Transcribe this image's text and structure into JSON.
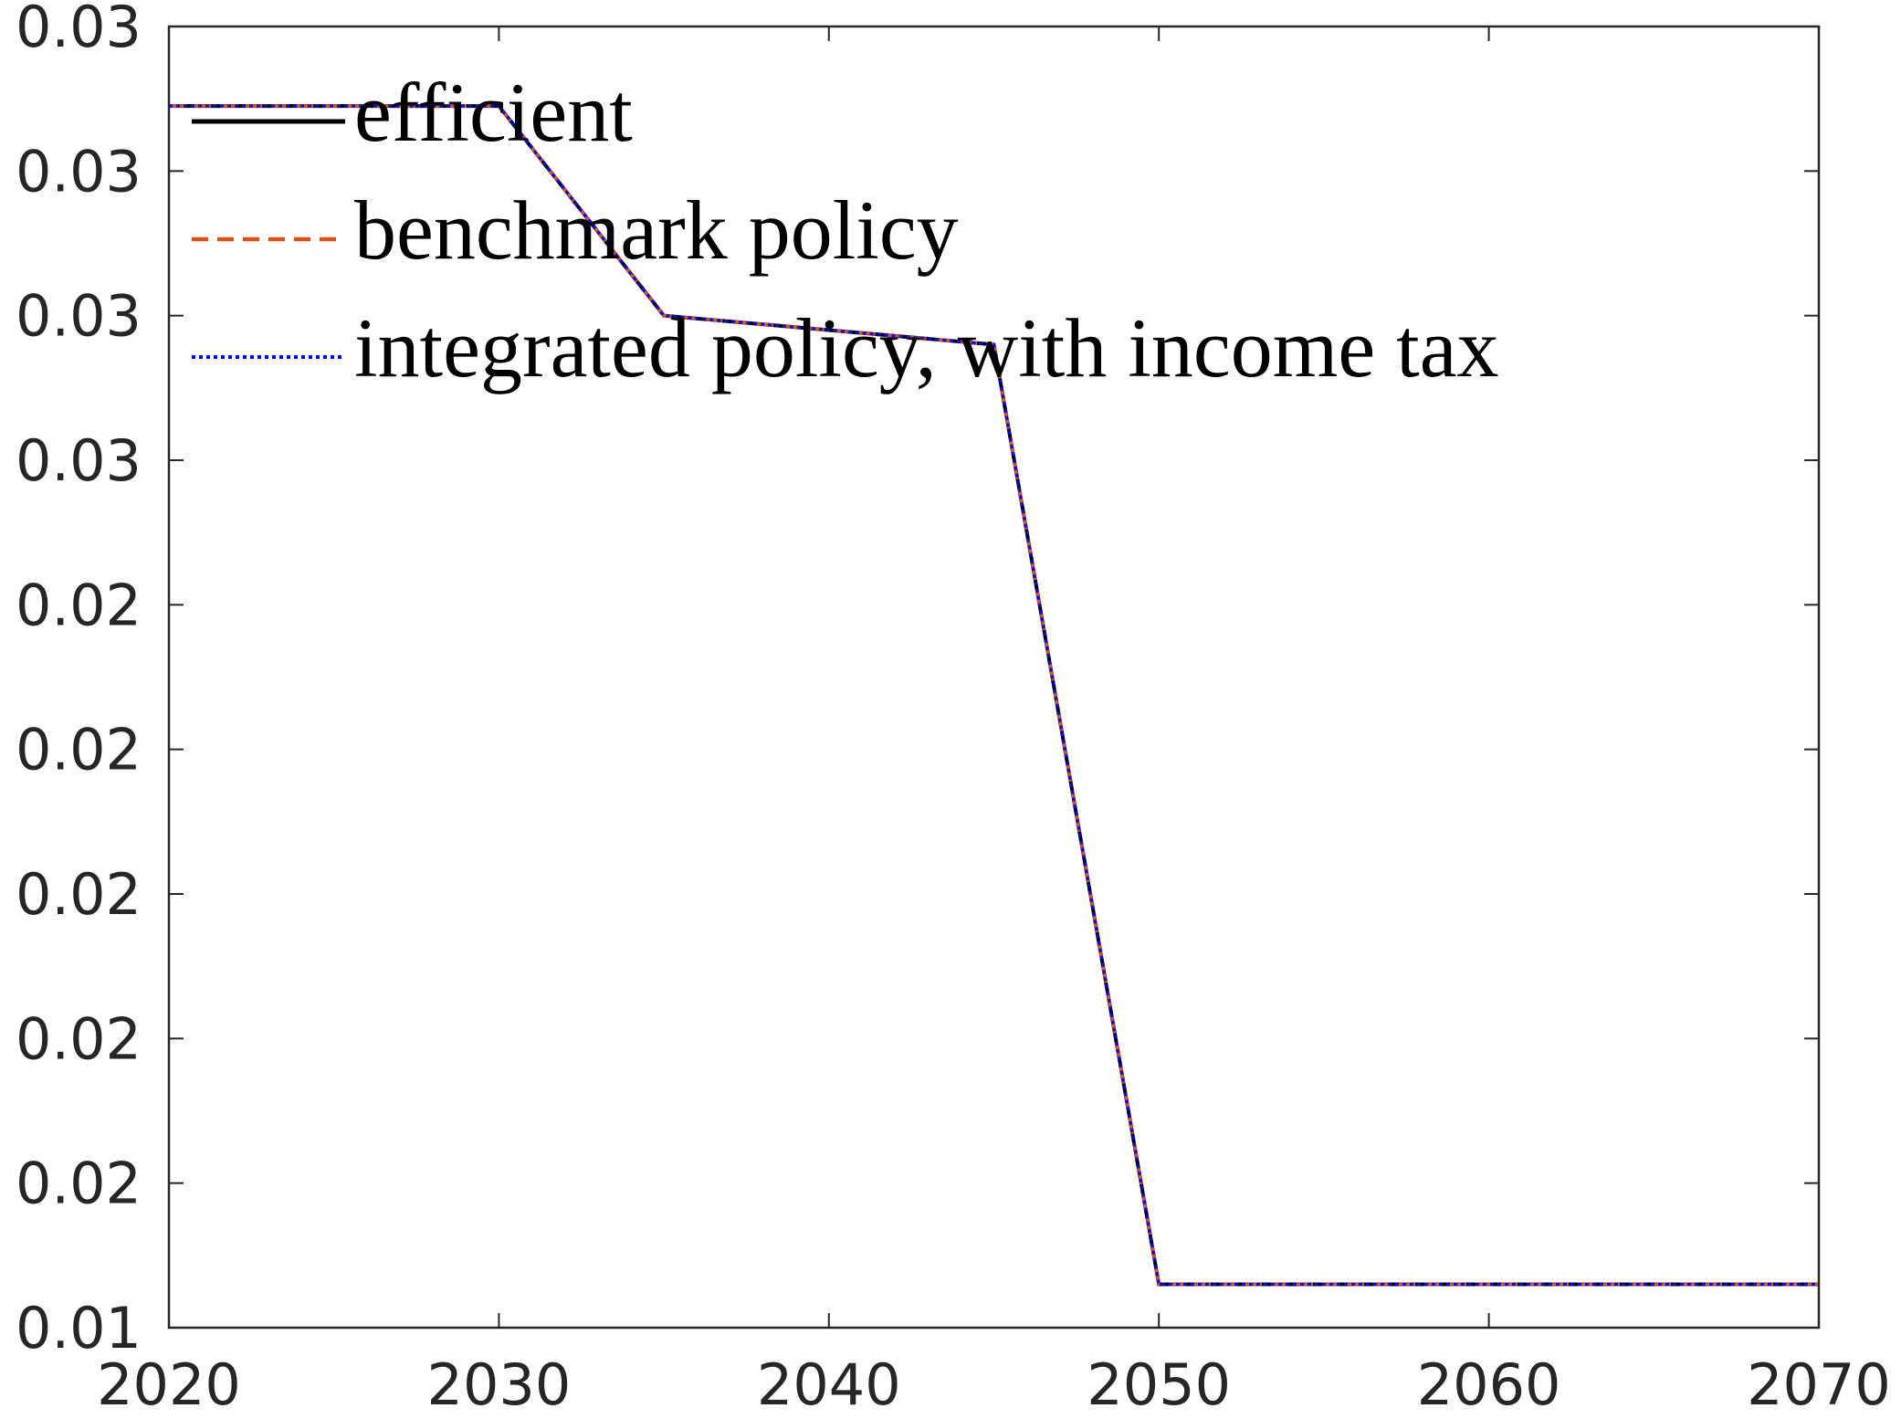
{
  "chart_data": {
    "type": "line",
    "x": [
      2020,
      2025,
      2030,
      2035,
      2040,
      2045,
      2050,
      2055,
      2060,
      2065,
      2070
    ],
    "series": [
      {
        "name": "efficient",
        "color": "#000000",
        "dash": "solid",
        "values": [
          0.0309,
          0.0309,
          0.0309,
          0.028,
          0.0278,
          0.0276,
          0.0146,
          0.0146,
          0.0146,
          0.0146,
          0.0146
        ]
      },
      {
        "name": "benchmark policy",
        "color": "#d95319",
        "dash": "dashed",
        "values": [
          0.0309,
          0.0309,
          0.0309,
          0.028,
          0.0278,
          0.0276,
          0.0146,
          0.0146,
          0.0146,
          0.0146,
          0.0146
        ]
      },
      {
        "name": "integrated policy, with income tax",
        "color": "#0000ff",
        "dash": "dotted",
        "values": [
          0.0309,
          0.0309,
          0.0309,
          0.028,
          0.0278,
          0.0276,
          0.0146,
          0.0146,
          0.0146,
          0.0146,
          0.0146
        ]
      }
    ],
    "xlim": [
      2020,
      2070
    ],
    "xticks": [
      2020,
      2030,
      2040,
      2050,
      2060,
      2070
    ],
    "ylim": [
      0.014,
      0.032
    ],
    "yticks": [
      {
        "value": 0.014,
        "label": "0.01"
      },
      {
        "value": 0.016,
        "label": "0.02"
      },
      {
        "value": 0.018,
        "label": "0.02"
      },
      {
        "value": 0.02,
        "label": "0.02"
      },
      {
        "value": 0.022,
        "label": "0.02"
      },
      {
        "value": 0.024,
        "label": "0.02"
      },
      {
        "value": 0.026,
        "label": "0.03"
      },
      {
        "value": 0.028,
        "label": "0.03"
      },
      {
        "value": 0.03,
        "label": "0.03"
      },
      {
        "value": 0.032,
        "label": "0.03"
      }
    ],
    "legend": "upper left",
    "grid": false
  }
}
